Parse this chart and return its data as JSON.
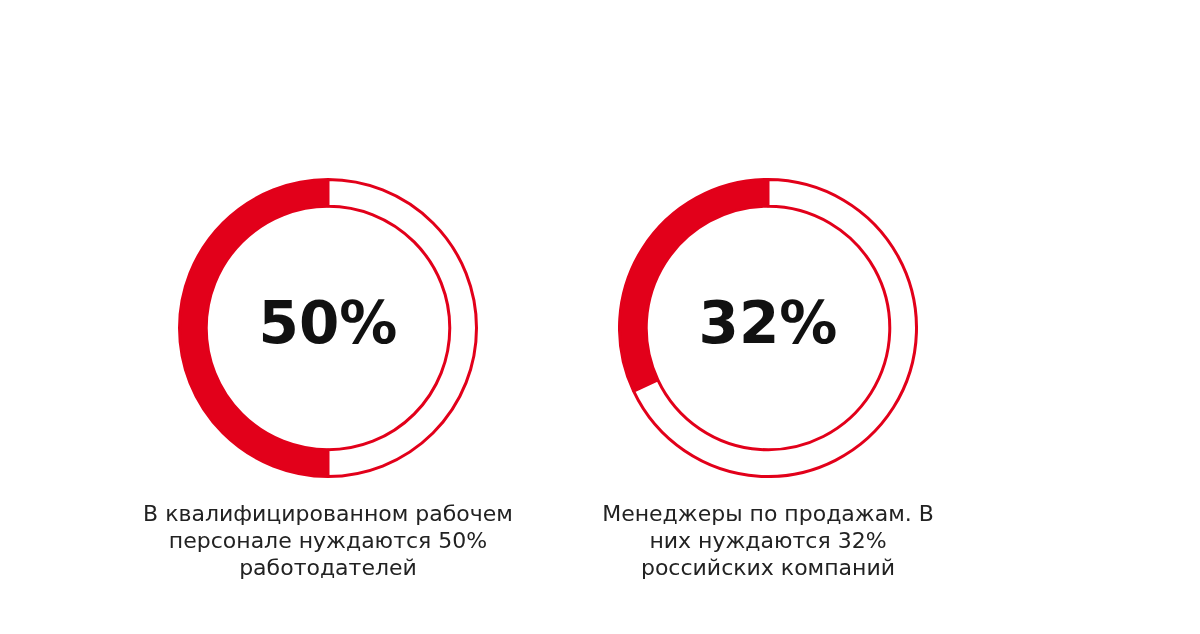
{
  "chart_data": [
    {
      "type": "donut",
      "title": "В квалифицированном рабочем персонале нуждаются 50% работодателей",
      "categories": [
        null,
        null
      ],
      "values": [
        50,
        50
      ],
      "colors": [
        "#e2001a",
        "#ffffff"
      ],
      "value_labels": [
        "50%",
        null
      ],
      "legend": false
    },
    {
      "type": "donut",
      "title": "Менеджеры по продажам. В них нуждаются 32% российских компаний",
      "categories": [
        null,
        null
      ],
      "values": [
        32,
        68
      ],
      "colors": [
        "#e2001a",
        "#ffffff"
      ],
      "value_labels": [
        "32%",
        null
      ],
      "legend": false
    }
  ]
}
